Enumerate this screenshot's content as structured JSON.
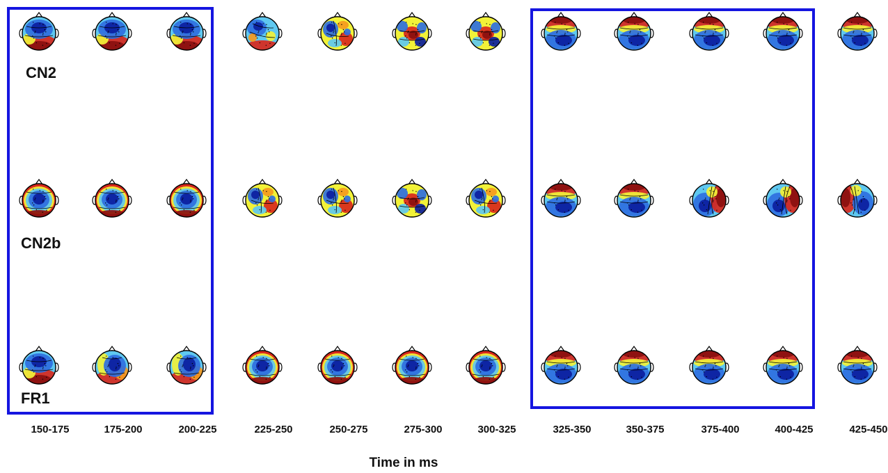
{
  "figure": {
    "rows": [
      {
        "label": "CN2"
      },
      {
        "label": "CN2b"
      },
      {
        "label": "FR1"
      }
    ],
    "time_windows": [
      "150-175",
      "175-200",
      "200-225",
      "225-250",
      "250-275",
      "275-300",
      "300-325",
      "325-350",
      "350-375",
      "375-400",
      "400-425",
      "425-450"
    ],
    "axis_title": "Time in ms",
    "highlight_windows": [
      {
        "from": "150-175",
        "to": "200-225"
      },
      {
        "from": "325-350",
        "to": "400-425"
      }
    ],
    "colors": {
      "highlight_box": "#1515e0",
      "colormap": [
        "#0b1e9e",
        "#2f6fe0",
        "#5fc8f0",
        "#f2f238",
        "#f59a1e",
        "#d8281c",
        "#8a0f0f"
      ]
    },
    "patterns": [
      [
        "anterior-blue-posterior-red",
        "anterior-blue-posterior-red",
        "anterior-blue-posterior-red",
        "anterior-blue-mixed",
        "mixed-blue-red",
        "mixed-central-red",
        "mixed-central-red",
        "anterior-red-posterior-blue",
        "anterior-red-posterior-blue",
        "anterior-red-posterior-blue",
        "anterior-red-posterior-blue",
        "anterior-red-posterior-blue"
      ],
      [
        "central-blue-ring-red",
        "central-blue-ring-red",
        "central-blue-ring-red",
        "mixed-blue-red",
        "mixed-blue-red",
        "mixed-central-red",
        "mixed-blue-red",
        "anterior-red-posterior-blue",
        "anterior-red-posterior-blue",
        "right-red-left-blue",
        "right-red-left-blue",
        "left-red-right-blue"
      ],
      [
        "anterior-blue-posterior-red",
        "central-blue-posterior-red",
        "central-blue-posterior-red",
        "central-blue-ring-red",
        "central-blue-ring-red",
        "central-blue-ring-red",
        "central-blue-ring-red",
        "anterior-red-posterior-blue",
        "anterior-red-posterior-blue",
        "anterior-red-posterior-blue",
        "anterior-red-posterior-blue",
        "anterior-red-posterior-blue"
      ]
    ]
  }
}
